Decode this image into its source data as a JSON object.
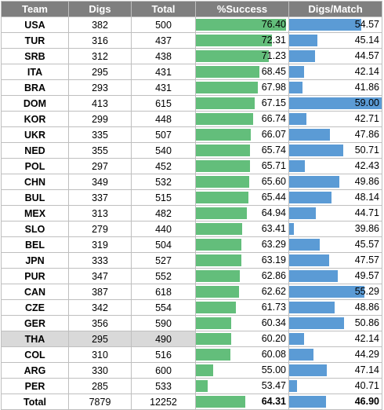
{
  "headers": {
    "team": "Team",
    "digs": "Digs",
    "total": "Total",
    "success": "%Success",
    "dpm": "Digs/Match"
  },
  "colors": {
    "header_bg": "#7f7f7f",
    "success_bar": "#63be7b",
    "dpm_bar": "#5b9bd5",
    "highlight_row": "#d9d9d9"
  },
  "bar_scales": {
    "success": {
      "min": 50,
      "max": 77
    },
    "dpm": {
      "min": 39,
      "max": 59
    }
  },
  "rows": [
    {
      "team": "USA",
      "digs": "382",
      "total": "500",
      "success": "76.40",
      "dpm": "54.57"
    },
    {
      "team": "TUR",
      "digs": "316",
      "total": "437",
      "success": "72.31",
      "dpm": "45.14"
    },
    {
      "team": "SRB",
      "digs": "312",
      "total": "438",
      "success": "71.23",
      "dpm": "44.57"
    },
    {
      "team": "ITA",
      "digs": "295",
      "total": "431",
      "success": "68.45",
      "dpm": "42.14"
    },
    {
      "team": "BRA",
      "digs": "293",
      "total": "431",
      "success": "67.98",
      "dpm": "41.86"
    },
    {
      "team": "DOM",
      "digs": "413",
      "total": "615",
      "success": "67.15",
      "dpm": "59.00"
    },
    {
      "team": "KOR",
      "digs": "299",
      "total": "448",
      "success": "66.74",
      "dpm": "42.71"
    },
    {
      "team": "UKR",
      "digs": "335",
      "total": "507",
      "success": "66.07",
      "dpm": "47.86"
    },
    {
      "team": "NED",
      "digs": "355",
      "total": "540",
      "success": "65.74",
      "dpm": "50.71"
    },
    {
      "team": "POL",
      "digs": "297",
      "total": "452",
      "success": "65.71",
      "dpm": "42.43"
    },
    {
      "team": "CHN",
      "digs": "349",
      "total": "532",
      "success": "65.60",
      "dpm": "49.86"
    },
    {
      "team": "BUL",
      "digs": "337",
      "total": "515",
      "success": "65.44",
      "dpm": "48.14"
    },
    {
      "team": "MEX",
      "digs": "313",
      "total": "482",
      "success": "64.94",
      "dpm": "44.71"
    },
    {
      "team": "SLO",
      "digs": "279",
      "total": "440",
      "success": "63.41",
      "dpm": "39.86"
    },
    {
      "team": "BEL",
      "digs": "319",
      "total": "504",
      "success": "63.29",
      "dpm": "45.57"
    },
    {
      "team": "JPN",
      "digs": "333",
      "total": "527",
      "success": "63.19",
      "dpm": "47.57"
    },
    {
      "team": "PUR",
      "digs": "347",
      "total": "552",
      "success": "62.86",
      "dpm": "49.57"
    },
    {
      "team": "CAN",
      "digs": "387",
      "total": "618",
      "success": "62.62",
      "dpm": "55.29"
    },
    {
      "team": "CZE",
      "digs": "342",
      "total": "554",
      "success": "61.73",
      "dpm": "48.86"
    },
    {
      "team": "GER",
      "digs": "356",
      "total": "590",
      "success": "60.34",
      "dpm": "50.86"
    },
    {
      "team": "THA",
      "digs": "295",
      "total": "490",
      "success": "60.20",
      "dpm": "42.14",
      "highlight": true
    },
    {
      "team": "COL",
      "digs": "310",
      "total": "516",
      "success": "60.08",
      "dpm": "44.29"
    },
    {
      "team": "ARG",
      "digs": "330",
      "total": "600",
      "success": "55.00",
      "dpm": "47.14"
    },
    {
      "team": "PER",
      "digs": "285",
      "total": "533",
      "success": "53.47",
      "dpm": "40.71"
    }
  ],
  "total_row": {
    "team": "Total",
    "digs": "7879",
    "total": "12252",
    "success": "64.31",
    "dpm": "46.90"
  }
}
